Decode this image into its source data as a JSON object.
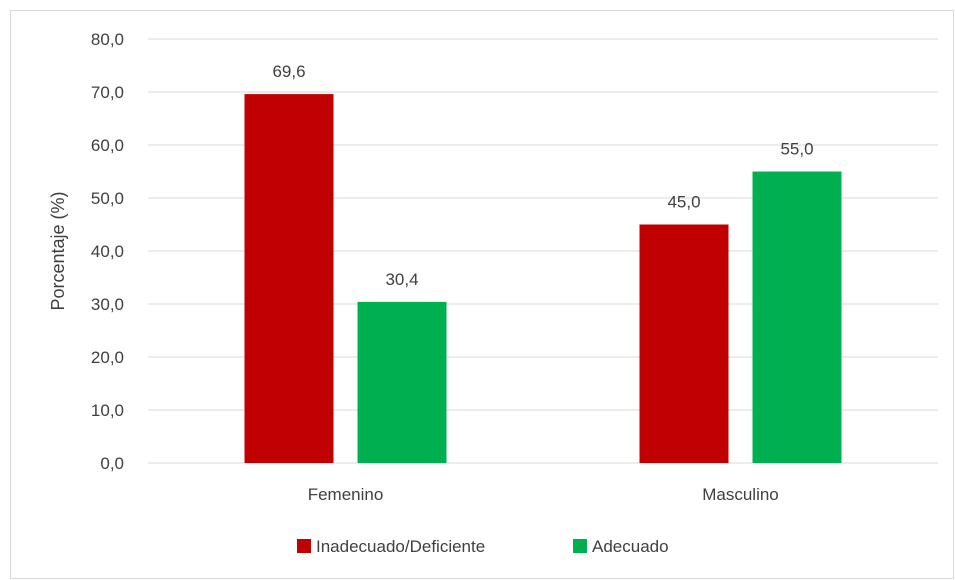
{
  "chart_data": {
    "type": "bar",
    "categories": [
      "Femenino",
      "Masculino"
    ],
    "series": [
      {
        "name": "Inadecuado/Deficiente",
        "values": [
          69.6,
          45.0
        ],
        "color": "#c00000"
      },
      {
        "name": "Adecuado",
        "values": [
          30.4,
          55.0
        ],
        "color": "#00b050"
      }
    ],
    "data_labels": [
      [
        "69,6",
        "45,0"
      ],
      [
        "30,4",
        "55,0"
      ]
    ],
    "title": "",
    "xlabel": "",
    "ylabel": "Porcentaje (%)",
    "ylim": [
      0,
      80
    ],
    "y_ticks": [
      0,
      10,
      20,
      30,
      40,
      50,
      60,
      70,
      80
    ],
    "y_tick_labels": [
      "0,0",
      "10,0",
      "20,0",
      "30,0",
      "40,0",
      "50,0",
      "60,0",
      "70,0",
      "80,0"
    ],
    "grid": true,
    "legend_position": "bottom",
    "gridline_color": "#d9d9d9",
    "text_color": "#404040"
  }
}
